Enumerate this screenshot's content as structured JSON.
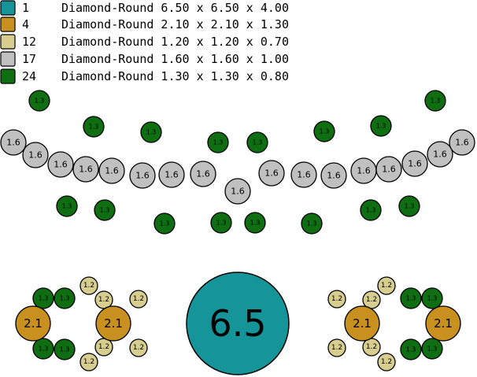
{
  "legend": [
    {
      "count": "1",
      "description": "Diamond-Round 6.50 x 6.50 x 4.00",
      "color": "#159499"
    },
    {
      "count": "4",
      "description": "Diamond-Round 2.10 x 2.10 x 1.30",
      "color": "#c8901e"
    },
    {
      "count": "12",
      "description": "Diamond-Round 1.20 x 1.20 x 0.70",
      "color": "#d6cd8f"
    },
    {
      "count": "17",
      "description": "Diamond-Round 1.60 x 1.60 x 1.00",
      "color": "#c0c0c0"
    },
    {
      "count": "24",
      "description": "Diamond-Round 1.30 x 1.30 x 0.80",
      "color": "#0f6e12"
    }
  ],
  "stone_types": {
    "d65": {
      "label": "6.5",
      "color": "#159499"
    },
    "d21": {
      "label": "2.1",
      "color": "#c8901e"
    },
    "d12": {
      "label": "1.2",
      "color": "#d6cd8f"
    },
    "d16": {
      "label": "1.6",
      "color": "#c0c0c0"
    },
    "d13": {
      "label": "1.3",
      "color": "#0f6e12"
    }
  }
}
